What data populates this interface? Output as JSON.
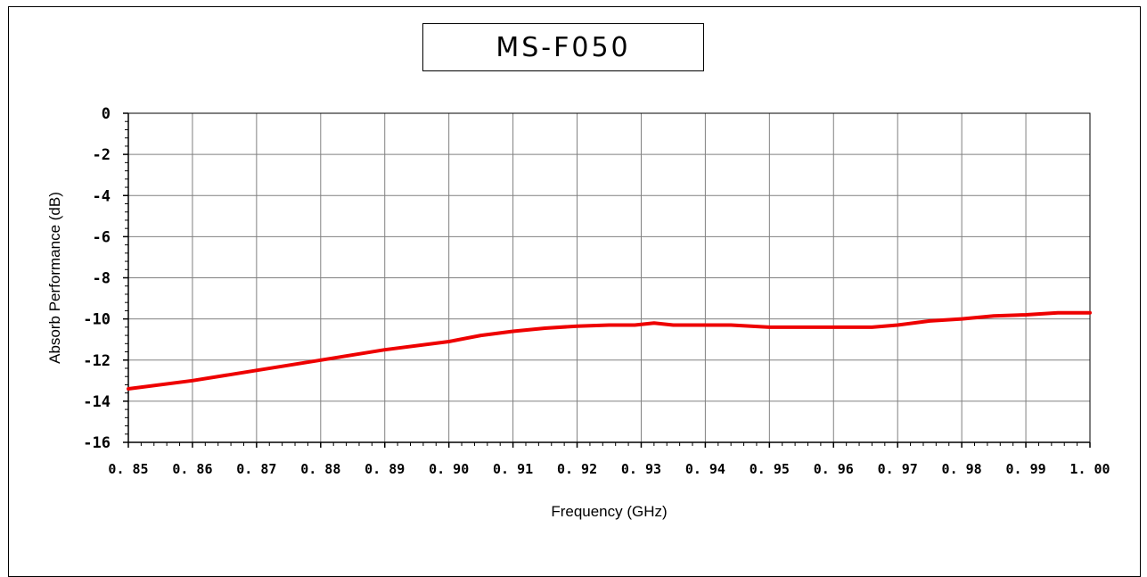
{
  "chart_data": {
    "type": "line",
    "title": "MS-F050",
    "xlabel": "Frequency (GHz)",
    "ylabel": "Absorb Performance (dB)",
    "xlim": [
      0.85,
      1.0
    ],
    "ylim": [
      -16,
      0
    ],
    "grid": true,
    "x_ticks": [
      "0. 85",
      "0. 86",
      "0. 87",
      "0. 88",
      "0. 89",
      "0. 90",
      "0. 91",
      "0. 92",
      "0. 93",
      "0. 94",
      "0. 95",
      "0. 96",
      "0. 97",
      "0. 98",
      "0. 99",
      "1. 00"
    ],
    "y_ticks": [
      "0",
      "-2",
      "-4",
      "-6",
      "-8",
      "-10",
      "-12",
      "-14",
      "-16"
    ],
    "series": [
      {
        "color": "#ee0000",
        "x": [
          0.85,
          0.86,
          0.87,
          0.88,
          0.89,
          0.9,
          0.905,
          0.91,
          0.915,
          0.92,
          0.925,
          0.929,
          0.932,
          0.935,
          0.94,
          0.944,
          0.95,
          0.96,
          0.966,
          0.97,
          0.975,
          0.98,
          0.985,
          0.99,
          0.995,
          1.0
        ],
        "values": [
          -13.4,
          -13.0,
          -12.5,
          -12.0,
          -11.5,
          -11.1,
          -10.8,
          -10.6,
          -10.45,
          -10.35,
          -10.3,
          -10.3,
          -10.2,
          -10.3,
          -10.3,
          -10.3,
          -10.4,
          -10.4,
          -10.4,
          -10.3,
          -10.1,
          -10.0,
          -9.85,
          -9.8,
          -9.7,
          -9.7
        ]
      }
    ]
  }
}
